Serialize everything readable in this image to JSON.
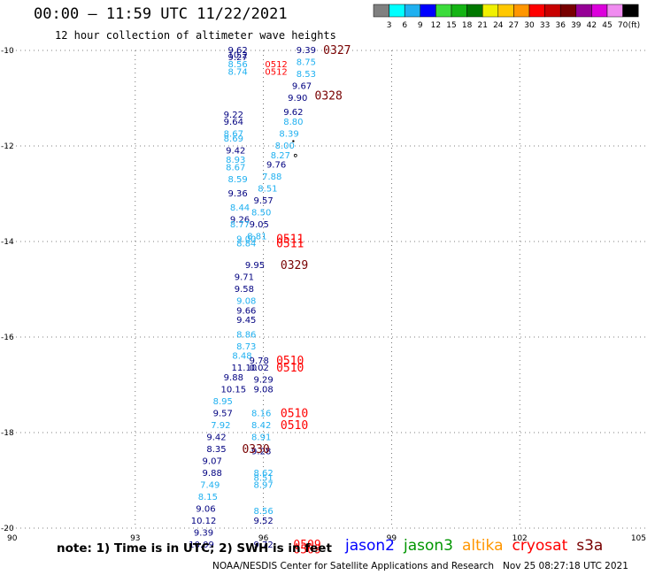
{
  "header": {
    "title": "00:00 – 11:59 UTC 11/22/2021",
    "subtitle": "12 hour collection of altimeter wave heights"
  },
  "colorbar": {
    "unit": "(ft)",
    "ticks": [
      "3",
      "6",
      "9",
      "12",
      "15",
      "18",
      "21",
      "24",
      "27",
      "30",
      "33",
      "36",
      "39",
      "42",
      "45",
      "70"
    ],
    "colors": [
      "#808080",
      "#00ffff",
      "#1fb0f0",
      "#0000ff",
      "#3cdc3c",
      "#14b414",
      "#007800",
      "#f0f000",
      "#ffc800",
      "#ff9600",
      "#ff0000",
      "#c80000",
      "#780000",
      "#960096",
      "#dc00dc",
      "#f08cf0",
      "#000000"
    ]
  },
  "footer": {
    "note": "note: 1) Time is in UTC; 2) SWH is in feet",
    "credit": "NOAA/NESDIS Center for Satellite Applications and Research   Nov 25 08:27:18 UTC 2021",
    "satellites": [
      {
        "name": "jason2",
        "color": "#0000ff"
      },
      {
        "name": "jason3",
        "color": "#009600"
      },
      {
        "name": "altika",
        "color": "#ff9600"
      },
      {
        "name": "cryosat",
        "color": "#ff0000"
      },
      {
        "name": "s3a",
        "color": "#780000"
      }
    ]
  },
  "chart_data": {
    "type": "scatter",
    "title": "00:00 – 11:59 UTC 11/22/2021",
    "subtitle": "12 hour collection of altimeter wave heights",
    "xlim": [
      90,
      105
    ],
    "ylim": [
      -20,
      -10
    ],
    "x_ticks": [
      "90",
      "93",
      "96",
      "99",
      "102",
      "105"
    ],
    "y_ticks": [
      "-10",
      "-12",
      "-14",
      "-16",
      "-18",
      "-20"
    ],
    "grid": true,
    "points": [
      {
        "x": 95.4,
        "y": -10.0,
        "label": "9.62",
        "color": "#000080"
      },
      {
        "x": 95.4,
        "y": -10.1,
        "label": "10.2",
        "color": "#000080"
      },
      {
        "x": 95.4,
        "y": -10.15,
        "label": "9.27",
        "color": "#000080"
      },
      {
        "x": 95.4,
        "y": -10.3,
        "label": "8.56",
        "color": "#1fb0f0"
      },
      {
        "x": 95.4,
        "y": -10.45,
        "label": "8.74",
        "color": "#1fb0f0"
      },
      {
        "x": 96.3,
        "y": -10.3,
        "label": "0512",
        "color": "#ff0000"
      },
      {
        "x": 96.3,
        "y": -10.45,
        "label": "0512",
        "color": "#ff0000"
      },
      {
        "x": 97.0,
        "y": -10.0,
        "label": "9.39",
        "color": "#000080"
      },
      {
        "x": 97.0,
        "y": -10.25,
        "label": "8.75",
        "color": "#1fb0f0"
      },
      {
        "x": 97.0,
        "y": -10.5,
        "label": "8.53",
        "color": "#1fb0f0"
      },
      {
        "x": 96.9,
        "y": -10.75,
        "label": "9.67",
        "color": "#000080"
      },
      {
        "x": 96.8,
        "y": -11.0,
        "label": "9.90",
        "color": "#000080"
      },
      {
        "x": 96.7,
        "y": -11.3,
        "label": "9.62",
        "color": "#000080"
      },
      {
        "x": 96.7,
        "y": -11.5,
        "label": "8.80",
        "color": "#1fb0f0"
      },
      {
        "x": 96.6,
        "y": -11.75,
        "label": "8.39",
        "color": "#1fb0f0"
      },
      {
        "x": 96.5,
        "y": -12.0,
        "label": "8.00",
        "color": "#1fb0f0"
      },
      {
        "x": 96.4,
        "y": -12.2,
        "label": "8.27",
        "color": "#1fb0f0"
      },
      {
        "x": 96.3,
        "y": -12.4,
        "label": "9.76",
        "color": "#000080"
      },
      {
        "x": 96.2,
        "y": -12.65,
        "label": "7.88",
        "color": "#1fb0f0"
      },
      {
        "x": 96.1,
        "y": -12.9,
        "label": "8.51",
        "color": "#1fb0f0"
      },
      {
        "x": 96.0,
        "y": -13.15,
        "label": "9.57",
        "color": "#000080"
      },
      {
        "x": 95.95,
        "y": -13.4,
        "label": "8.50",
        "color": "#1fb0f0"
      },
      {
        "x": 95.9,
        "y": -13.65,
        "label": "9.05",
        "color": "#000080"
      },
      {
        "x": 95.85,
        "y": -13.9,
        "label": "8.81",
        "color": "#1fb0f0"
      },
      {
        "x": 95.8,
        "y": -14.5,
        "label": "9.95",
        "color": "#000080"
      },
      {
        "x": 95.3,
        "y": -11.35,
        "label": "9.22",
        "color": "#000080"
      },
      {
        "x": 95.3,
        "y": -11.5,
        "label": "9.64",
        "color": "#000080"
      },
      {
        "x": 95.3,
        "y": -11.75,
        "label": "8.67",
        "color": "#1fb0f0"
      },
      {
        "x": 95.3,
        "y": -11.85,
        "label": "8.69",
        "color": "#1fb0f0"
      },
      {
        "x": 95.35,
        "y": -12.1,
        "label": "9.42",
        "color": "#000080"
      },
      {
        "x": 95.35,
        "y": -12.3,
        "label": "8.93",
        "color": "#1fb0f0"
      },
      {
        "x": 95.35,
        "y": -12.45,
        "label": "8.67",
        "color": "#1fb0f0"
      },
      {
        "x": 95.4,
        "y": -12.7,
        "label": "8.59",
        "color": "#1fb0f0"
      },
      {
        "x": 95.4,
        "y": -13.0,
        "label": "9.36",
        "color": "#000080"
      },
      {
        "x": 95.45,
        "y": -13.3,
        "label": "8.44",
        "color": "#1fb0f0"
      },
      {
        "x": 95.45,
        "y": -13.55,
        "label": "9.26",
        "color": "#000080"
      },
      {
        "x": 95.45,
        "y": -13.65,
        "label": "8.77",
        "color": "#1fb0f0"
      },
      {
        "x": 95.6,
        "y": -13.95,
        "label": "9.00",
        "color": "#1fb0f0"
      },
      {
        "x": 95.6,
        "y": -14.05,
        "label": "8.84",
        "color": "#1fb0f0"
      },
      {
        "x": 95.55,
        "y": -14.75,
        "label": "9.71",
        "color": "#000080"
      },
      {
        "x": 95.55,
        "y": -15.0,
        "label": "9.58",
        "color": "#000080"
      },
      {
        "x": 95.6,
        "y": -15.25,
        "label": "9.08",
        "color": "#1fb0f0"
      },
      {
        "x": 95.6,
        "y": -15.45,
        "label": "9.66",
        "color": "#000080"
      },
      {
        "x": 95.6,
        "y": -15.65,
        "label": "9.45",
        "color": "#000080"
      },
      {
        "x": 95.6,
        "y": -15.95,
        "label": "8.86",
        "color": "#1fb0f0"
      },
      {
        "x": 95.6,
        "y": -16.2,
        "label": "8.73",
        "color": "#1fb0f0"
      },
      {
        "x": 95.5,
        "y": -16.4,
        "label": "8.48",
        "color": "#1fb0f0"
      },
      {
        "x": 95.55,
        "y": -16.65,
        "label": "11.10",
        "color": "#000080"
      },
      {
        "x": 95.9,
        "y": -16.65,
        "label": "0.02",
        "color": "#000080"
      },
      {
        "x": 95.9,
        "y": -16.5,
        "label": "9.78",
        "color": "#000080"
      },
      {
        "x": 95.3,
        "y": -16.85,
        "label": "9.88",
        "color": "#000080"
      },
      {
        "x": 96.0,
        "y": -16.9,
        "label": "9.29",
        "color": "#000080"
      },
      {
        "x": 95.3,
        "y": -17.1,
        "label": "10.15",
        "color": "#000080"
      },
      {
        "x": 96.0,
        "y": -17.1,
        "label": "9.08",
        "color": "#000080"
      },
      {
        "x": 95.05,
        "y": -17.35,
        "label": "8.95",
        "color": "#1fb0f0"
      },
      {
        "x": 95.05,
        "y": -17.6,
        "label": "9.57",
        "color": "#000080"
      },
      {
        "x": 95.95,
        "y": -17.6,
        "label": "8.16",
        "color": "#1fb0f0"
      },
      {
        "x": 95.0,
        "y": -17.85,
        "label": "7.92",
        "color": "#1fb0f0"
      },
      {
        "x": 95.95,
        "y": -17.85,
        "label": "8.42",
        "color": "#1fb0f0"
      },
      {
        "x": 94.9,
        "y": -18.1,
        "label": "9.42",
        "color": "#000080"
      },
      {
        "x": 95.95,
        "y": -18.1,
        "label": "8.91",
        "color": "#1fb0f0"
      },
      {
        "x": 94.9,
        "y": -18.35,
        "label": "8.35",
        "color": "#000080"
      },
      {
        "x": 95.95,
        "y": -18.4,
        "label": "9.28",
        "color": "#000080"
      },
      {
        "x": 94.8,
        "y": -18.6,
        "label": "9.07",
        "color": "#000080"
      },
      {
        "x": 94.8,
        "y": -18.85,
        "label": "9.88",
        "color": "#000080"
      },
      {
        "x": 96.0,
        "y": -18.85,
        "label": "8.62",
        "color": "#1fb0f0"
      },
      {
        "x": 96.0,
        "y": -18.95,
        "label": "8.51",
        "color": "#1fb0f0"
      },
      {
        "x": 94.75,
        "y": -19.1,
        "label": "7.49",
        "color": "#1fb0f0"
      },
      {
        "x": 96.0,
        "y": -19.1,
        "label": "8.97",
        "color": "#1fb0f0"
      },
      {
        "x": 94.7,
        "y": -19.35,
        "label": "8.15",
        "color": "#1fb0f0"
      },
      {
        "x": 94.65,
        "y": -19.6,
        "label": "9.06",
        "color": "#000080"
      },
      {
        "x": 96.0,
        "y": -19.65,
        "label": "8.56",
        "color": "#1fb0f0"
      },
      {
        "x": 94.6,
        "y": -19.85,
        "label": "10.12",
        "color": "#000080"
      },
      {
        "x": 96.0,
        "y": -19.85,
        "label": "9.52",
        "color": "#000080"
      },
      {
        "x": 94.6,
        "y": -20.1,
        "label": "9.39",
        "color": "#000080"
      },
      {
        "x": 94.55,
        "y": -20.35,
        "label": "10.09",
        "color": "#000080"
      },
      {
        "x": 96.0,
        "y": -20.35,
        "label": "9.72",
        "color": "#000080"
      }
    ],
    "annotations": [
      {
        "x": 97.4,
        "y": -10.0,
        "label": "0327",
        "color": "#780000"
      },
      {
        "x": 97.2,
        "y": -10.95,
        "label": "0328",
        "color": "#780000"
      },
      {
        "x": 96.3,
        "y": -13.95,
        "label": "0511",
        "color": "#ff0000"
      },
      {
        "x": 96.3,
        "y": -14.05,
        "label": "0511",
        "color": "#ff0000"
      },
      {
        "x": 96.4,
        "y": -14.5,
        "label": "0329",
        "color": "#780000"
      },
      {
        "x": 96.3,
        "y": -16.5,
        "label": "0510",
        "color": "#ff0000"
      },
      {
        "x": 96.3,
        "y": -16.65,
        "label": "0510",
        "color": "#ff0000"
      },
      {
        "x": 96.4,
        "y": -17.6,
        "label": "0510",
        "color": "#ff0000"
      },
      {
        "x": 96.4,
        "y": -17.85,
        "label": "0510",
        "color": "#ff0000"
      },
      {
        "x": 95.5,
        "y": -18.35,
        "label": "0330",
        "color": "#780000"
      },
      {
        "x": 96.7,
        "y": -20.35,
        "label": "0509",
        "color": "#ff0000"
      },
      {
        "x": 96.7,
        "y": -20.45,
        "label": "0509",
        "color": "#ff0000"
      }
    ]
  }
}
